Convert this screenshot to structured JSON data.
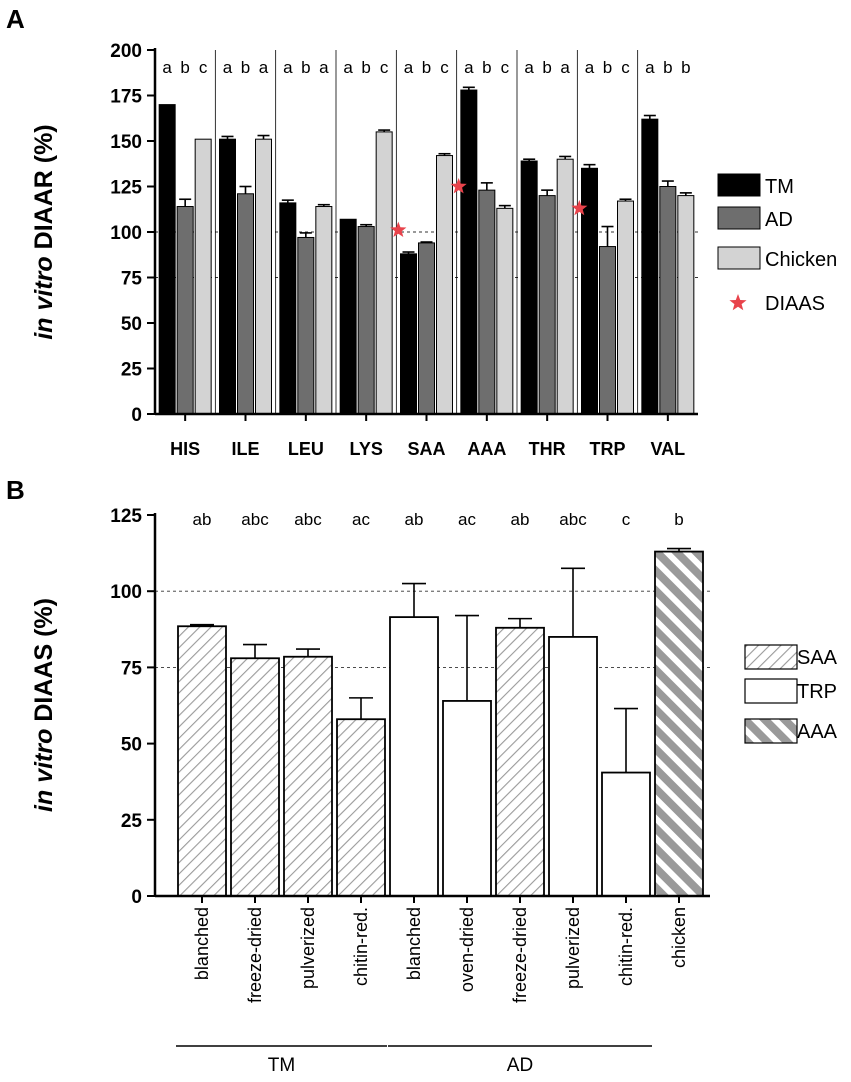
{
  "chart_data": [
    {
      "panel_label": "A",
      "type": "bar",
      "ylabel_italic": "in vitro",
      "ylabel_rest": " DIAAR (%)",
      "ylim": [
        0,
        200
      ],
      "yticks": [
        0,
        25,
        50,
        75,
        100,
        125,
        150,
        175,
        200
      ],
      "reference_lines": [
        75,
        100
      ],
      "categories": [
        "HIS",
        "ILE",
        "LEU",
        "LYS",
        "SAA",
        "AAA",
        "THR",
        "TRP",
        "VAL"
      ],
      "series": [
        {
          "name": "TM",
          "color": "#000000",
          "values": [
            170,
            151,
            116,
            107,
            88,
            178,
            139,
            135,
            162
          ],
          "errors": [
            0,
            1.5,
            1.5,
            0,
            1,
            1.5,
            1,
            2,
            2
          ]
        },
        {
          "name": "AD",
          "color": "#6e6e6e",
          "values": [
            114,
            121,
            97,
            103,
            94,
            123,
            120,
            92,
            125
          ],
          "errors": [
            4,
            4,
            2.5,
            1,
            0.5,
            4,
            3,
            11,
            3
          ]
        },
        {
          "name": "Chicken",
          "color": "#d3d3d3",
          "values": [
            151,
            151,
            114,
            155,
            142,
            113,
            140,
            117,
            120
          ],
          "errors": [
            0,
            2,
            1,
            1,
            1,
            1.5,
            1.5,
            1,
            1.5
          ]
        }
      ],
      "significance_letters": [
        [
          "a",
          "b",
          "c"
        ],
        [
          "a",
          "b",
          "a"
        ],
        [
          "a",
          "b",
          "a"
        ],
        [
          "a",
          "b",
          "c"
        ],
        [
          "a",
          "b",
          "c"
        ],
        [
          "a",
          "b",
          "c"
        ],
        [
          "a",
          "b",
          "a"
        ],
        [
          "a",
          "b",
          "c"
        ],
        [
          "a",
          "b",
          "b"
        ]
      ],
      "diaas_stars": [
        {
          "category": "SAA",
          "value": 101
        },
        {
          "category": "AAA",
          "value": 125
        },
        {
          "category": "TRP",
          "value": 113
        }
      ],
      "legend": {
        "items": [
          "TM",
          "AD",
          "Chicken"
        ],
        "star_label": "DIAAS",
        "star_color": "#e8434b"
      }
    },
    {
      "panel_label": "B",
      "type": "bar",
      "ylabel_italic": "in vitro",
      "ylabel_rest": " DIAAS (%)",
      "ylim": [
        0,
        125
      ],
      "yticks": [
        0,
        25,
        50,
        75,
        100,
        125
      ],
      "reference_lines": [
        75,
        100
      ],
      "categories": [
        "blanched",
        "freeze-dried",
        "pulverized",
        "chitin-red.",
        "blanched",
        "oven-dried",
        "freeze-dried",
        "pulverized",
        "chitin-red.",
        "chicken"
      ],
      "values": [
        88.5,
        78,
        78.5,
        58,
        91.5,
        64,
        88,
        85,
        40.5,
        113
      ],
      "errors": [
        0.5,
        4.5,
        2.5,
        7,
        11,
        28,
        3,
        22.5,
        21,
        1
      ],
      "limiting_aa": [
        "SAA",
        "SAA",
        "SAA",
        "SAA",
        "TRP",
        "TRP",
        "SAA",
        "TRP",
        "TRP",
        "AAA"
      ],
      "significance_letters": [
        "ab",
        "abc",
        "abc",
        "ac",
        "ab",
        "ac",
        "ab",
        "abc",
        "c",
        "b"
      ],
      "groups": [
        {
          "label": "TM",
          "from": 0,
          "to": 3
        },
        {
          "label": "AD",
          "from": 4,
          "to": 8
        }
      ],
      "legend": {
        "items": [
          "SAA",
          "TRP",
          "AAA"
        ]
      }
    }
  ]
}
